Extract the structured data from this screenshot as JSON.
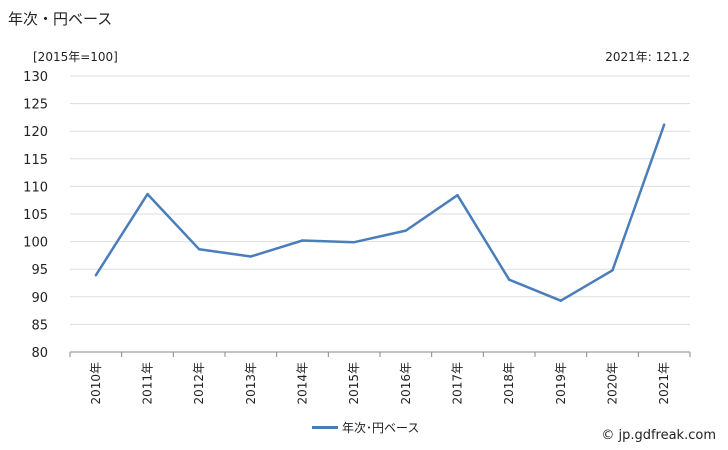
{
  "title": "年次・円ベース",
  "unit_label": "[2015年=100]",
  "latest_label": "2021年: 121.2",
  "credit": "© jp.gdfreak.com",
  "colors": {
    "series": "#4a7ebb",
    "grid": "#dddddd",
    "axis": "#888888"
  },
  "chart_data": {
    "type": "line",
    "title": "",
    "xlabel": "",
    "ylabel": "[2015年=100]",
    "ylim": [
      80,
      130
    ],
    "yticks": [
      80,
      85,
      90,
      95,
      100,
      105,
      110,
      115,
      120,
      125,
      130
    ],
    "grid": true,
    "legend_position": "bottom",
    "categories": [
      "2010年",
      "2011年",
      "2012年",
      "2013年",
      "2014年",
      "2015年",
      "2016年",
      "2017年",
      "2018年",
      "2019年",
      "2020年",
      "2021年"
    ],
    "series": [
      {
        "name": "年次･円ベース",
        "values": [
          93.9,
          108.6,
          98.6,
          97.3,
          100.2,
          99.9,
          102.0,
          108.4,
          93.1,
          89.3,
          94.8,
          121.2
        ]
      }
    ]
  }
}
